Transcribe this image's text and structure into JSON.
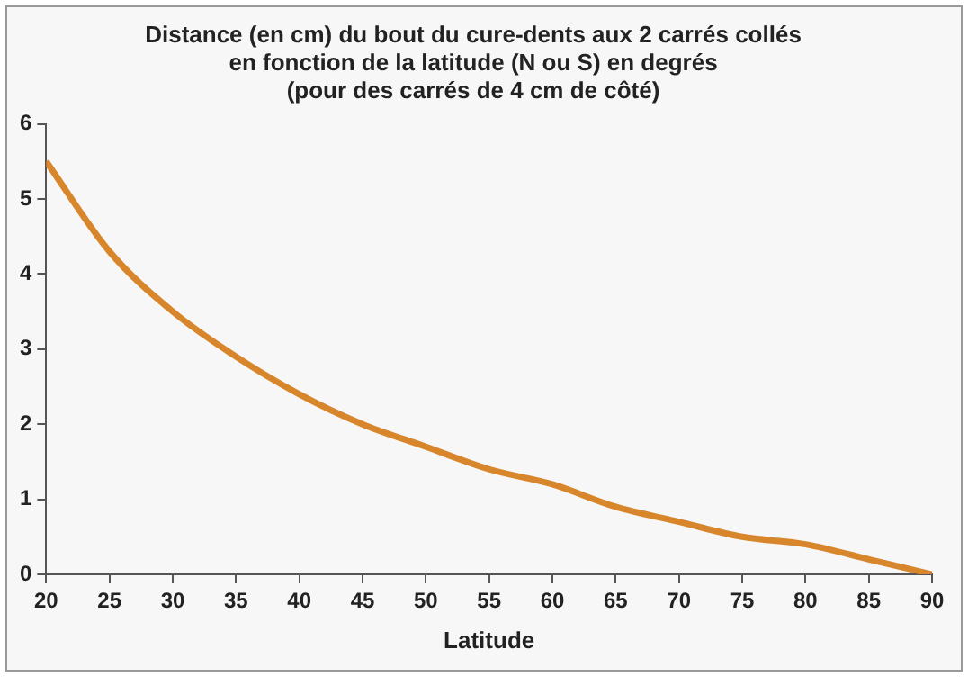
{
  "chart_data": {
    "type": "line",
    "title": "Distance (en cm) du bout du cure-dents aux 2 carrés collés\nen fonction de la latitude (N ou S) en degrés\n(pour des carrés de 4 cm de côté)",
    "xlabel": "Latitude",
    "x": [
      20,
      25,
      30,
      35,
      40,
      45,
      50,
      55,
      60,
      65,
      70,
      75,
      80,
      85,
      90
    ],
    "series": [
      {
        "color": "#d8862c",
        "values": [
          5.5,
          4.3,
          3.5,
          2.9,
          2.4,
          2.0,
          1.7,
          1.4,
          1.2,
          0.9,
          0.7,
          0.5,
          0.4,
          0.2,
          0
        ]
      }
    ],
    "xlim": [
      20,
      90
    ],
    "xticks": [
      20,
      25,
      30,
      35,
      40,
      45,
      50,
      55,
      60,
      65,
      70,
      75,
      80,
      85,
      90
    ],
    "ylim": [
      0,
      6
    ],
    "yticks": [
      0,
      1,
      2,
      3,
      4,
      5,
      6
    ],
    "grid": false,
    "legend": false,
    "marker": "none",
    "line_style": "solid"
  }
}
